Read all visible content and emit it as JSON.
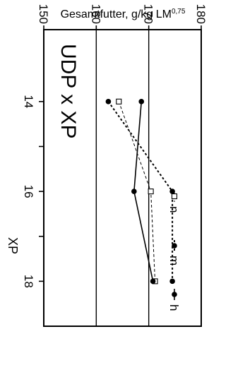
{
  "chart_data": {
    "type": "line",
    "title": "UDP x XP",
    "xlabel": "XP",
    "ylabel": "Gesamtfutter, g/kg LM",
    "ylabel_sub": "0,75",
    "xlim": [
      12.4,
      19.0
    ],
    "ylim": [
      150,
      180
    ],
    "x_ticks": [
      14,
      16,
      18
    ],
    "x_minor_ticks": [
      15,
      17
    ],
    "y_ticks": [
      150,
      160,
      170,
      180
    ],
    "grid_y": [
      160,
      170
    ],
    "x": [
      14,
      16,
      18
    ],
    "series": [
      {
        "name": "n",
        "values": [
          164.3,
          170.4,
          171.2
        ],
        "style": "thin-dashed",
        "marker": "open-square"
      },
      {
        "name": "m",
        "values": [
          162.3,
          174.5,
          174.5
        ],
        "style": "dotted",
        "marker": "filled-circle"
      },
      {
        "name": "h",
        "values": [
          168.6,
          167.2,
          170.8
        ],
        "style": "solid",
        "marker": "filled-circle"
      }
    ],
    "legend_position": "bottom",
    "orientation": "rotated-90-clockwise"
  }
}
